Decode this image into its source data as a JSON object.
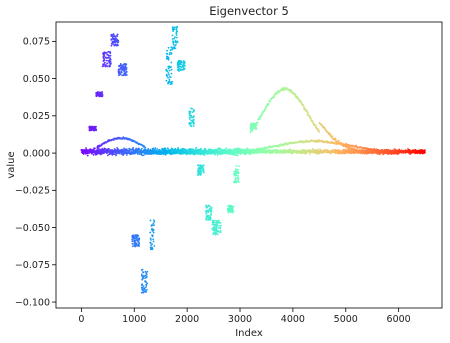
{
  "chart_data": {
    "type": "scatter",
    "title": "Eigenvector 5",
    "xlabel": "Index",
    "ylabel": "value",
    "xlim": [
      -480,
      6820
    ],
    "ylim": [
      -0.104,
      0.088
    ],
    "xticks": [
      0,
      1000,
      2000,
      3000,
      4000,
      5000,
      6000
    ],
    "yticks": [
      -0.1,
      -0.075,
      -0.05,
      -0.025,
      0.0,
      0.025,
      0.05,
      0.075
    ],
    "ytick_labels": [
      "−0.100",
      "−0.075",
      "−0.050",
      "−0.025",
      "0.000",
      "0.025",
      "0.050",
      "0.075"
    ],
    "grid": false,
    "legend": "none",
    "colormap": "rainbow",
    "n_points": 6500,
    "series": [
      {
        "label": "baseline band",
        "x_range": [
          0,
          6500
        ],
        "y_center": 0.001,
        "y_spread": 0.0035
      },
      {
        "label": "lower arc",
        "x_range": [
          300,
          6000
        ],
        "peak_x": 4400,
        "peak_y": 0.008
      },
      {
        "label": "upper arc",
        "x_range": [
          3200,
          4500
        ],
        "peak_x": 3850,
        "peak_y": 0.043
      }
    ],
    "clusters": [
      {
        "x": [
          150,
          280
        ],
        "y": [
          0.015,
          0.018
        ]
      },
      {
        "x": [
          280,
          400
        ],
        "y": [
          0.038,
          0.041
        ]
      },
      {
        "x": [
          400,
          560
        ],
        "y": [
          0.058,
          0.068
        ]
      },
      {
        "x": [
          560,
          700
        ],
        "y": [
          0.072,
          0.08
        ]
      },
      {
        "x": [
          700,
          860
        ],
        "y": [
          0.052,
          0.06
        ]
      },
      {
        "x": [
          960,
          1100
        ],
        "y": [
          -0.063,
          -0.055
        ]
      },
      {
        "x": [
          1140,
          1250
        ],
        "y": [
          -0.095,
          -0.078
        ]
      },
      {
        "x": [
          1300,
          1380
        ],
        "y": [
          -0.065,
          -0.045
        ]
      },
      {
        "x": [
          1600,
          1720
        ],
        "y": [
          0.045,
          0.072
        ]
      },
      {
        "x": [
          1720,
          1820
        ],
        "y": [
          0.07,
          0.085
        ]
      },
      {
        "x": [
          1820,
          1960
        ],
        "y": [
          0.055,
          0.062
        ]
      },
      {
        "x": [
          2040,
          2140
        ],
        "y": [
          0.018,
          0.03
        ]
      },
      {
        "x": [
          2200,
          2320
        ],
        "y": [
          -0.015,
          -0.008
        ]
      },
      {
        "x": [
          2350,
          2470
        ],
        "y": [
          -0.045,
          -0.035
        ]
      },
      {
        "x": [
          2470,
          2640
        ],
        "y": [
          -0.055,
          -0.045
        ]
      },
      {
        "x": [
          2760,
          2880
        ],
        "y": [
          -0.04,
          -0.035
        ]
      },
      {
        "x": [
          2880,
          2980
        ],
        "y": [
          -0.02,
          -0.008
        ]
      },
      {
        "x": [
          3200,
          3320
        ],
        "y": [
          0.016,
          0.02
        ]
      }
    ]
  }
}
